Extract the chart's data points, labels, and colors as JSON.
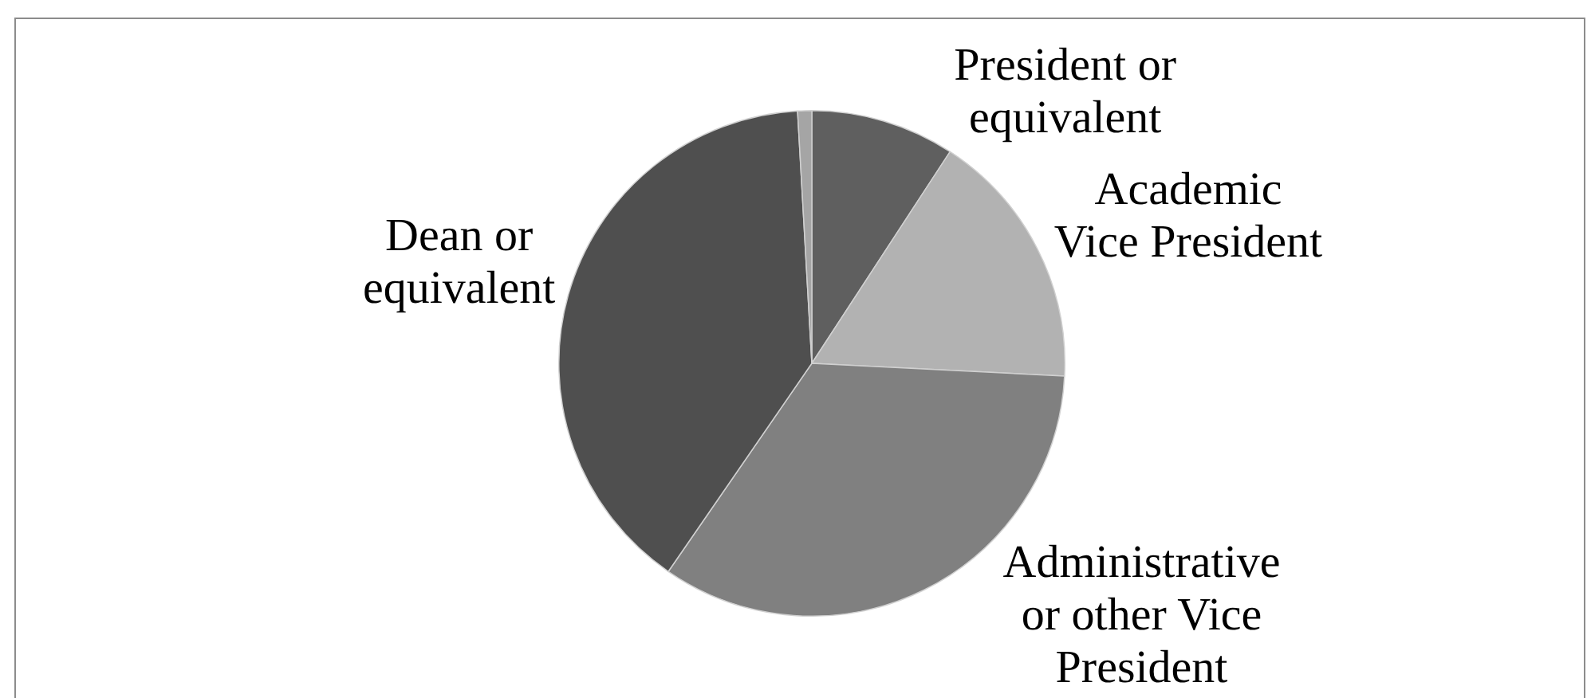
{
  "chart_data": {
    "type": "pie",
    "categories": [
      "President or equivalent",
      "Academic Vice President",
      "Administrative or other Vice President",
      "Dean or equivalent",
      null
    ],
    "values": [
      9.2,
      16.6,
      33.8,
      39.5,
      0.9
    ],
    "colors": [
      "#5f5f5f",
      "#b2b2b2",
      "#808080",
      "#4f4f4f",
      "#a5a5a5"
    ]
  }
}
